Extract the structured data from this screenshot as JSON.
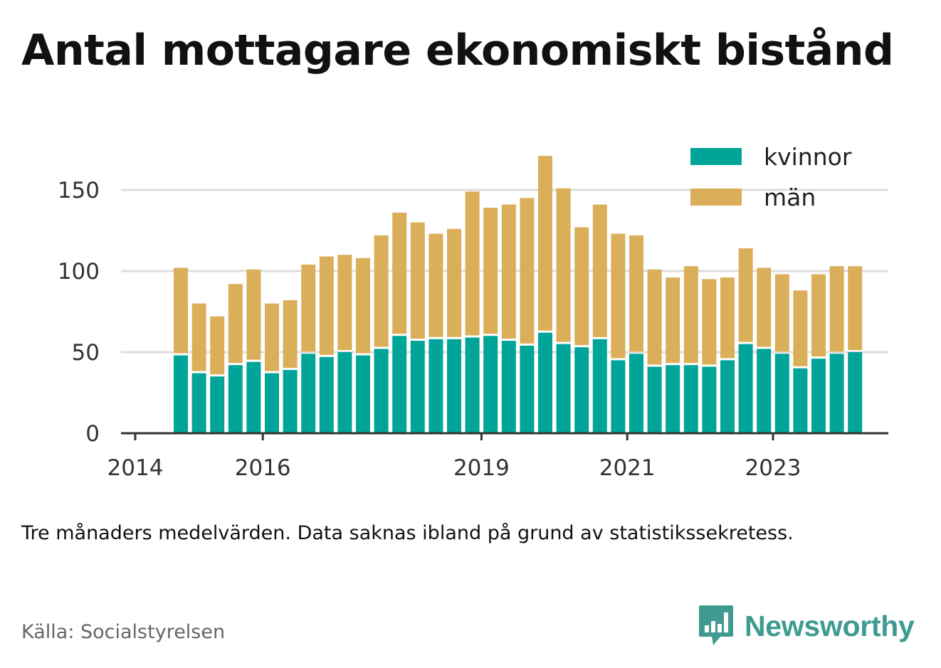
{
  "title": "Antal mottagare ekonomiskt bistånd",
  "note": "Tre månaders medelvärden. Data saknas ibland på grund av statistikssekretess.",
  "source": "Källa: Socialstyrelsen",
  "brand": {
    "name": "Newsworthy",
    "icon": "bar-chart-speech-bubble-icon",
    "color": "#3f9b91"
  },
  "colors": {
    "kvinnor": "#00a499",
    "man": "#dbae5a",
    "grid": "#dddddd",
    "axis": "#333333"
  },
  "chart_data": {
    "type": "bar",
    "stacked": true,
    "grid": true,
    "legend_position": "top-right",
    "ylim": [
      0,
      175
    ],
    "yticks": [
      0,
      50,
      100,
      150
    ],
    "x_tick_labels": [
      "2014",
      "2016",
      "2019",
      "2021",
      "2023"
    ],
    "x_tick_after_bar": [
      -3,
      4,
      16,
      24,
      32
    ],
    "series": [
      {
        "name": "kvinnor",
        "values": [
          48,
          37,
          35,
          42,
          44,
          37,
          39,
          49,
          47,
          50,
          48,
          52,
          60,
          57,
          58,
          58,
          59,
          60,
          57,
          54,
          62,
          55,
          53,
          58,
          45,
          49,
          41,
          42,
          42,
          41,
          45,
          55,
          52,
          49,
          40,
          46,
          49,
          50
        ]
      },
      {
        "name": "män",
        "values": [
          54,
          43,
          37,
          50,
          57,
          43,
          43,
          55,
          62,
          60,
          60,
          70,
          76,
          73,
          65,
          68,
          90,
          79,
          84,
          91,
          109,
          96,
          74,
          83,
          78,
          73,
          60,
          54,
          61,
          54,
          51,
          59,
          50,
          49,
          48,
          52,
          54,
          53
        ]
      }
    ]
  }
}
